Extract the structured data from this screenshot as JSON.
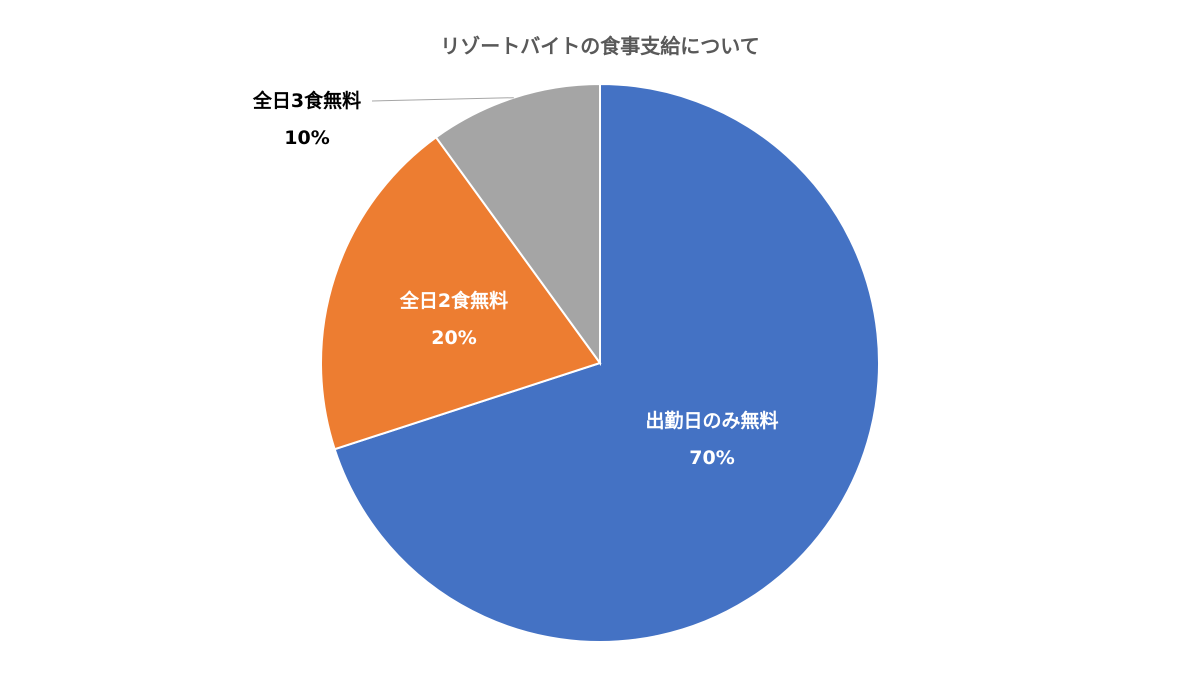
{
  "chart_data": {
    "type": "pie",
    "title": "リゾートバイトの食事支給について",
    "categories": [
      "出勤日のみ無料",
      "全日2食無料",
      "全日3食無料"
    ],
    "values": [
      70,
      20,
      10
    ],
    "value_labels": [
      "70%",
      "20%",
      "10%"
    ],
    "colors": [
      "#4472C4",
      "#ED7D31",
      "#A5A5A5"
    ],
    "label_colors": [
      "#ffffff",
      "#ffffff",
      "#000000"
    ],
    "start_angle": "12 o'clock",
    "direction": "clockwise",
    "legend": "none"
  }
}
